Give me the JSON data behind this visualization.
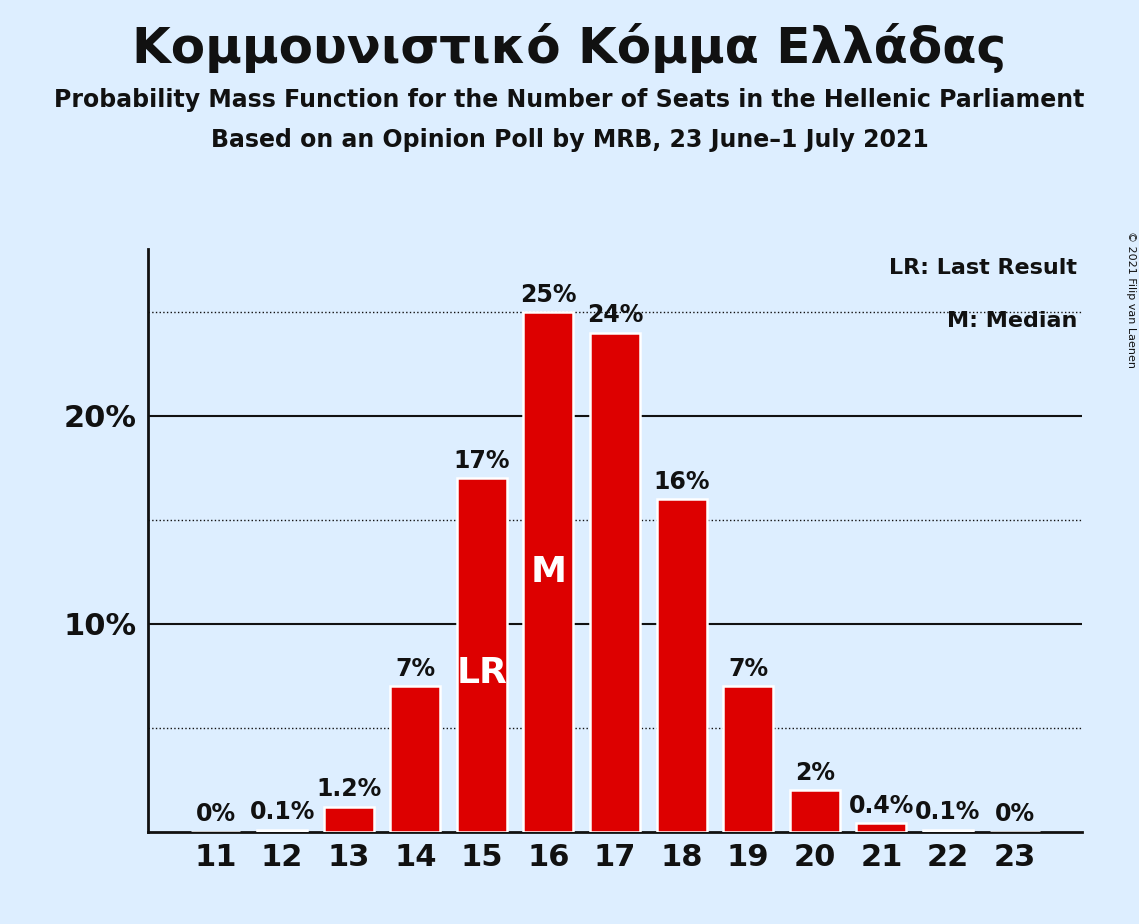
{
  "title": "Κομμουνιστικό Κόμμα Ελλάδας",
  "subtitle1": "Probability Mass Function for the Number of Seats in the Hellenic Parliament",
  "subtitle2": "Based on an Opinion Poll by MRB, 23 June–1 July 2021",
  "copyright": "© 2021 Filip van Laenen",
  "seats": [
    11,
    12,
    13,
    14,
    15,
    16,
    17,
    18,
    19,
    20,
    21,
    22,
    23
  ],
  "values": [
    0.0,
    0.1,
    1.2,
    7.0,
    17.0,
    25.0,
    24.0,
    16.0,
    7.0,
    2.0,
    0.4,
    0.1,
    0.0
  ],
  "bar_color": "#dd0000",
  "bar_edge_color": "#ffffff",
  "background_color": "#ddeeff",
  "text_color": "#111111",
  "white": "#ffffff",
  "lr_seat": 15,
  "median_seat": 16,
  "ylim": [
    0,
    28
  ],
  "legend_lr": "LR: Last Result",
  "legend_m": "M: Median",
  "title_fontsize": 36,
  "subtitle_fontsize": 17,
  "ytick_fontsize": 22,
  "xtick_fontsize": 22,
  "label_fontsize": 17,
  "lr_m_fontsize": 26,
  "legend_fontsize": 16,
  "copyright_fontsize": 8
}
